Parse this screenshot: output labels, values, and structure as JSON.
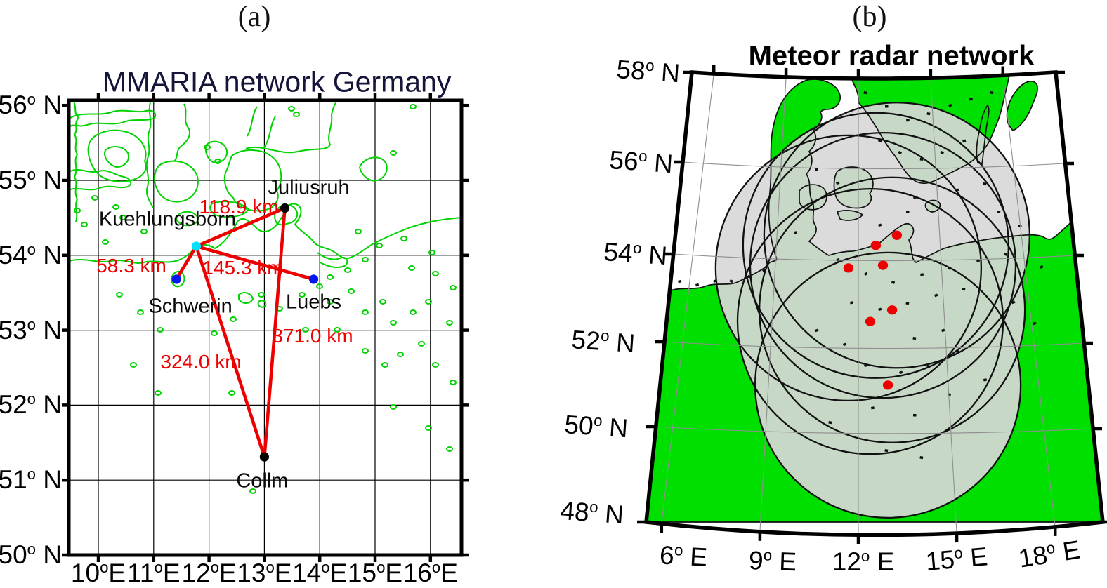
{
  "figure": {
    "panel_a": {
      "tag": "(a)",
      "title": "MMARIA network Germany",
      "x_ticks": [
        "10°E",
        "11°E",
        "12°E",
        "13°E",
        "14°E",
        "15°E",
        "16°E"
      ],
      "y_ticks": [
        "56° N",
        "55° N",
        "54° N",
        "53° N",
        "52° N",
        "51° N",
        "50° N"
      ],
      "lon_tick_values": [
        10,
        11,
        12,
        13,
        14,
        15,
        16
      ],
      "lat_tick_values": [
        56,
        55,
        54,
        53,
        52,
        51,
        50
      ],
      "stations": [
        {
          "name": "Kuehlungsborn",
          "lat": 54.12,
          "lon": 11.77,
          "marker_color": "#00e0ff"
        },
        {
          "name": "Juliusruh",
          "lat": 54.63,
          "lon": 13.37,
          "marker_color": "#000000"
        },
        {
          "name": "Schwerin",
          "lat": 53.68,
          "lon": 11.41,
          "marker_color": "#0018ee"
        },
        {
          "name": "Luebs",
          "lat": 53.68,
          "lon": 13.89,
          "marker_color": "#0018ee"
        },
        {
          "name": "Collm",
          "lat": 51.31,
          "lon": 13.0,
          "marker_color": "#000000"
        }
      ],
      "baselines": [
        {
          "from": "Kuehlungsborn",
          "to": "Juliusruh",
          "label": "118.9 km"
        },
        {
          "from": "Kuehlungsborn",
          "to": "Schwerin",
          "label": "58.3 km"
        },
        {
          "from": "Kuehlungsborn",
          "to": "Luebs",
          "label": "145.3 km"
        },
        {
          "from": "Kuehlungsborn",
          "to": "Collm",
          "label": "324.0 km"
        },
        {
          "from": "Juliusruh",
          "to": "Collm",
          "label": "371.0 km"
        }
      ]
    },
    "panel_b": {
      "tag": "(b)",
      "title": "Meteor radar network",
      "x_ticks": [
        "6° E",
        "9° E",
        "12° E",
        "15° E",
        "18° E"
      ],
      "y_ticks": [
        "58° N",
        "56° N",
        "54° N",
        "52° N",
        "50° N",
        "48° N"
      ],
      "lon_tick_values": [
        6,
        9,
        12,
        15,
        18
      ],
      "lat_tick_values": [
        58,
        56,
        54,
        52,
        50,
        48
      ],
      "radars": [
        {
          "lat": 54.44,
          "lon": 12.85
        },
        {
          "lat": 54.21,
          "lon": 12.05
        },
        {
          "lat": 53.7,
          "lon": 11.01
        },
        {
          "lat": 53.76,
          "lon": 12.32
        },
        {
          "lat": 52.75,
          "lon": 12.67
        },
        {
          "lat": 52.49,
          "lon": 11.84
        },
        {
          "lat": 51.05,
          "lon": 12.51
        }
      ],
      "coverage_radius_deg": 3.0
    },
    "colors": {
      "coast_a": "#00d300",
      "land_b": "#00e000",
      "baseline_red": "#ee0000",
      "radar_dot_red": "#ee0000",
      "coverage_fill": "#d8d8d8",
      "grid_b": "#8f8f8f"
    }
  }
}
